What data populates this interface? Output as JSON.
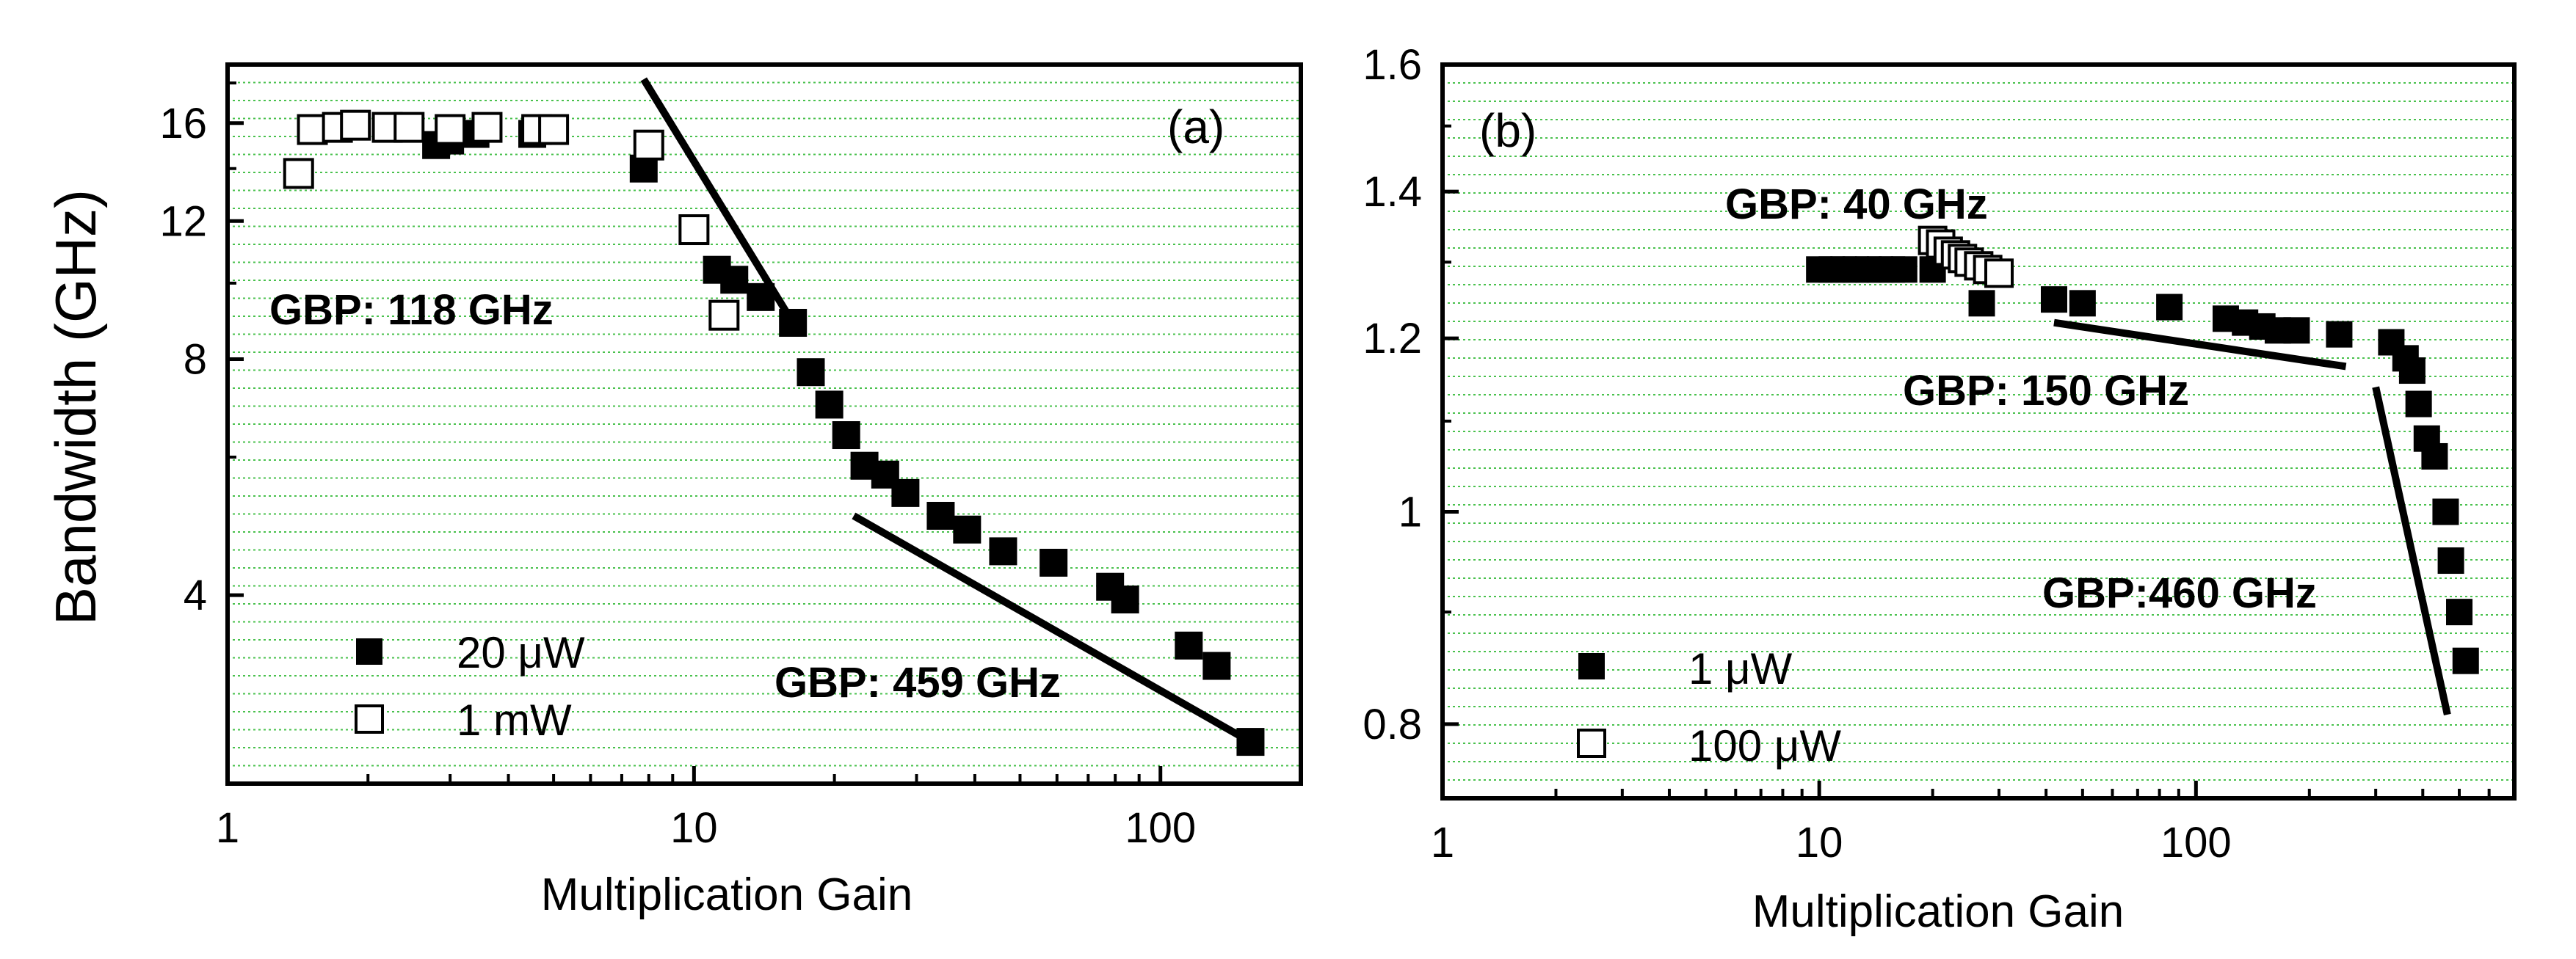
{
  "figure": {
    "ylabel": "Bandwidth (GHz)"
  },
  "chart_data": [
    {
      "type": "scatter",
      "panel_label": "(a)",
      "xlabel": "Multiplication Gain",
      "ylabel": "Bandwidth (GHz)",
      "xscale": "log",
      "yscale": "log",
      "xlim": [
        1,
        200
      ],
      "ylim": [
        2.3,
        19
      ],
      "xticks": [
        1,
        10,
        100
      ],
      "xtick_labels": [
        "1",
        "10",
        "100"
      ],
      "yticks": [
        4,
        8,
        12,
        16
      ],
      "ytick_labels": [
        "4",
        "8",
        "12",
        "16"
      ],
      "grid": "horizontal dashed, green",
      "legend_position": "bottom-left",
      "series": [
        {
          "name": "20 μW",
          "marker": "filled-square",
          "x": [
            2.8,
            3.0,
            3.4,
            4.5,
            7.8,
            11.2,
            12.2,
            13.9,
            16.3,
            17.8,
            19.5,
            21.2,
            23.2,
            25.7,
            28.4,
            33.8,
            38.5,
            46.0,
            59.0,
            78.0,
            84.0,
            115.0,
            132.0,
            156.0
          ],
          "y": [
            15.0,
            15.2,
            15.5,
            15.5,
            14.0,
            10.4,
            10.1,
            9.6,
            8.9,
            7.7,
            7.0,
            6.4,
            5.85,
            5.7,
            5.4,
            5.05,
            4.85,
            4.55,
            4.4,
            4.1,
            3.95,
            3.45,
            3.25,
            2.6
          ]
        },
        {
          "name": "1 mW",
          "marker": "open-square",
          "x": [
            1.42,
            1.52,
            1.72,
            1.88,
            2.2,
            2.45,
            3.0,
            3.6,
            4.6,
            5.0,
            8.0,
            10.0,
            11.6
          ],
          "y": [
            13.8,
            15.7,
            15.8,
            15.9,
            15.8,
            15.8,
            15.7,
            15.8,
            15.7,
            15.7,
            15.0,
            11.7,
            9.1
          ]
        }
      ],
      "fit_lines": [
        {
          "label": "GBP: 118 GHz",
          "x": [
            7.8,
            16.3
          ],
          "y": [
            18.2,
            8.9
          ]
        },
        {
          "label": "GBP: 459 GHz",
          "x": [
            22.0,
            156.0
          ],
          "y": [
            5.05,
            2.6
          ]
        }
      ],
      "annotations": [
        "GBP: 118 GHz",
        "GBP: 459 GHz"
      ]
    },
    {
      "type": "scatter",
      "panel_label": "(b)",
      "xlabel": "Multiplication Gain",
      "ylabel": "",
      "xscale": "log",
      "yscale": "log",
      "xlim": [
        1,
        700
      ],
      "ylim": [
        0.74,
        1.6
      ],
      "xticks": [
        1,
        10,
        100
      ],
      "xtick_labels": [
        "1",
        "10",
        "100"
      ],
      "yticks": [
        0.8,
        1.0,
        1.2,
        1.4,
        1.6
      ],
      "ytick_labels": [
        "0.8",
        "1",
        "1.2",
        "1.4",
        "1.6"
      ],
      "grid": "horizontal dashed, green",
      "legend_position": "bottom-left",
      "series": [
        {
          "name": "1 μW",
          "marker": "filled-square",
          "x": [
            10.0,
            10.8,
            11.6,
            12.5,
            13.5,
            14.5,
            15.6,
            16.8,
            20.0,
            27.0,
            42.0,
            50.0,
            85.0,
            120.0,
            135.0,
            150.0,
            165.0,
            185.0,
            240.0,
            330.0,
            360.0,
            375.0,
            390.0,
            410.0,
            430.0,
            460.0,
            475.0,
            500.0,
            520.0
          ],
          "y": [
            1.29,
            1.29,
            1.29,
            1.29,
            1.29,
            1.29,
            1.29,
            1.29,
            1.29,
            1.245,
            1.25,
            1.245,
            1.24,
            1.225,
            1.22,
            1.215,
            1.21,
            1.21,
            1.205,
            1.195,
            1.175,
            1.16,
            1.12,
            1.08,
            1.06,
            1.0,
            0.95,
            0.9,
            0.855
          ]
        },
        {
          "name": "100 μW",
          "marker": "open-square",
          "x": [
            20.0,
            21.0,
            22.0,
            23.0,
            24.0,
            25.0,
            26.5,
            28.0,
            30.0
          ],
          "y": [
            1.33,
            1.325,
            1.315,
            1.31,
            1.305,
            1.3,
            1.295,
            1.29,
            1.285
          ]
        }
      ],
      "fit_lines": [
        {
          "label": "GBP: 150 GHz",
          "x": [
            42.0,
            250.0
          ],
          "y": [
            1.22,
            1.165
          ]
        },
        {
          "label": "GBP:460 GHz",
          "x": [
            300.0,
            465.0
          ],
          "y": [
            1.14,
            0.808
          ]
        }
      ],
      "annotations": [
        "GBP: 40 GHz",
        "GBP: 150 GHz",
        "GBP:460 GHz"
      ]
    }
  ]
}
